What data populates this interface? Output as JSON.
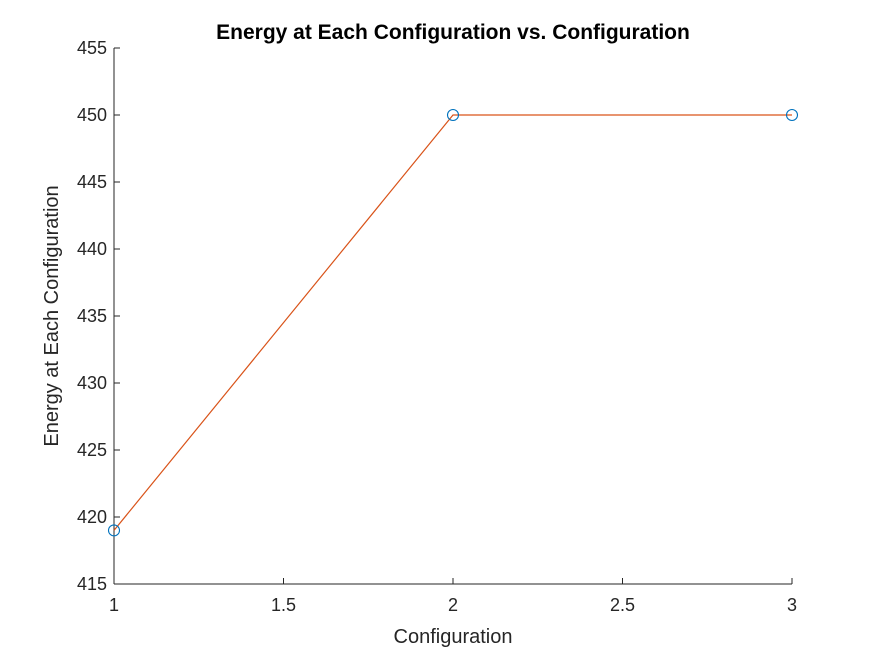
{
  "chart_data": {
    "type": "line",
    "title": "Energy at Each Configuration vs. Configuration",
    "xlabel": "Configuration",
    "ylabel": "Energy at Each Configuration",
    "xlim": [
      1,
      3
    ],
    "ylim": [
      415,
      455
    ],
    "x_ticks": [
      "1",
      "1.5",
      "2",
      "2.5",
      "3"
    ],
    "y_ticks": [
      "415",
      "420",
      "425",
      "430",
      "435",
      "440",
      "445",
      "450",
      "455"
    ],
    "grid": false,
    "series": [
      {
        "x": [
          1,
          2,
          3
        ],
        "y": [
          419,
          450,
          450
        ],
        "line_color": "#D95319",
        "marker": "circle",
        "marker_color": "#0072BD"
      }
    ]
  }
}
